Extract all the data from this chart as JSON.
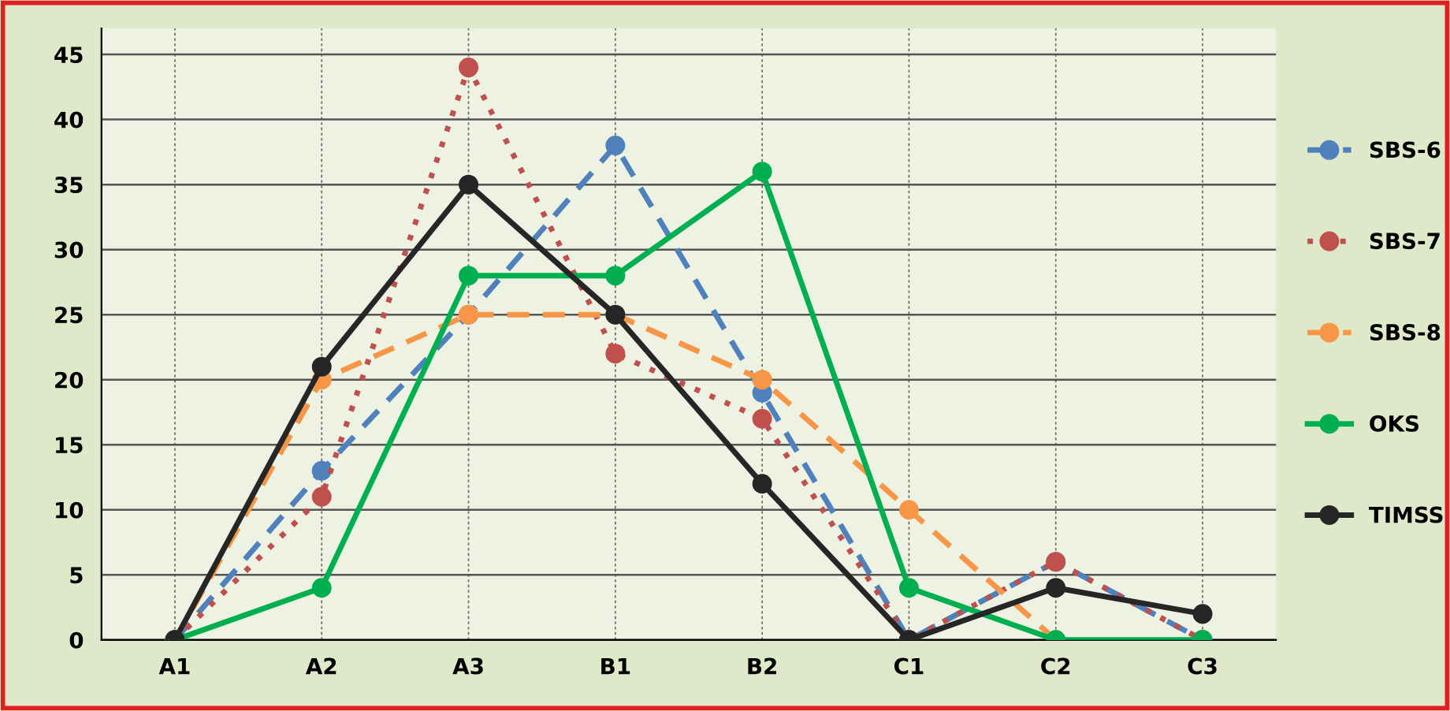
{
  "chart_data": {
    "type": "line",
    "categories": [
      "A1",
      "A2",
      "A3",
      "B1",
      "B2",
      "C1",
      "C2",
      "C3"
    ],
    "series": [
      {
        "name": "SBS-6",
        "color": "#4f81bd",
        "line_style": "dashed",
        "values": [
          0,
          13,
          25,
          38,
          19,
          0,
          6,
          0
        ]
      },
      {
        "name": "SBS-7",
        "color": "#c0504d",
        "line_style": "dotted",
        "values": [
          0,
          11,
          44,
          22,
          17,
          0,
          6,
          0
        ]
      },
      {
        "name": "SBS-8",
        "color": "#f79646",
        "line_style": "dashed",
        "values": [
          0,
          20,
          25,
          25,
          20,
          10,
          0,
          null
        ]
      },
      {
        "name": "OKS",
        "color": "#00b050",
        "line_style": "solid",
        "values": [
          0,
          4,
          28,
          28,
          36,
          4,
          0,
          0
        ]
      },
      {
        "name": "TIMSS",
        "color": "#262626",
        "line_style": "solid",
        "values": [
          0,
          21,
          35,
          25,
          12,
          0,
          4,
          2
        ]
      }
    ],
    "ylim": [
      0,
      47
    ],
    "yticks": [
      0,
      5,
      10,
      15,
      20,
      25,
      30,
      35,
      40,
      45
    ],
    "grid": true,
    "legend": "right",
    "marker": "circle"
  }
}
